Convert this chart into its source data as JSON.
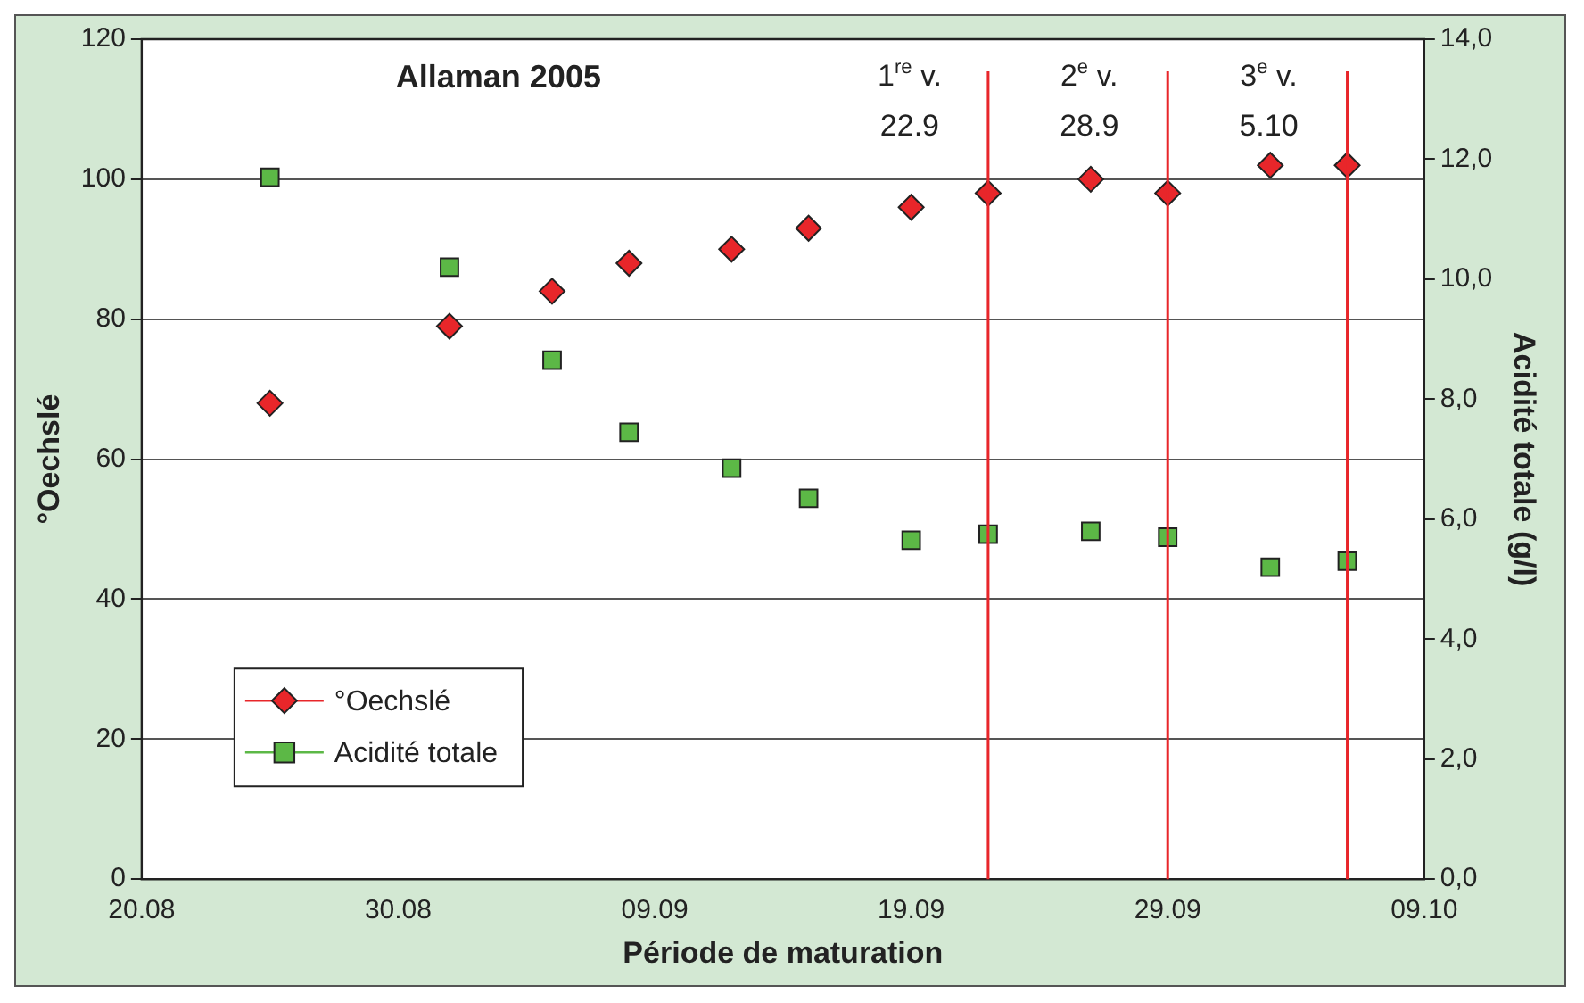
{
  "chart_data": {
    "type": "scatter",
    "title": "Allaman 2005",
    "xlabel": "Période de maturation",
    "ylabel": "°Oechslé",
    "y2label": "Acidité totale (g/l)",
    "x": [
      "2005-08-25",
      "2005-09-01",
      "2005-09-05",
      "2005-09-08",
      "2005-09-12",
      "2005-09-15",
      "2005-09-19",
      "2005-09-22",
      "2005-09-26",
      "2005-09-29",
      "2005-10-03",
      "2005-10-06"
    ],
    "series": [
      {
        "name": "°Oechslé",
        "color": "#e8262a",
        "marker": "diamond",
        "values": [
          68,
          79,
          84,
          88,
          90,
          93,
          96,
          98,
          100,
          98,
          102,
          102
        ]
      },
      {
        "name": "Acidité totale",
        "color": "#5cb846",
        "marker": "square",
        "axis": "y2",
        "values": [
          11.7,
          10.2,
          8.65,
          7.45,
          6.85,
          6.35,
          5.65,
          5.75,
          5.8,
          5.7,
          5.2,
          5.3
        ]
      }
    ],
    "xlim": [
      "2005-08-20",
      "2005-10-09"
    ],
    "xticks": [
      {
        "value": "2005-08-20",
        "label": "20.08"
      },
      {
        "value": "2005-08-30",
        "label": "30.08"
      },
      {
        "value": "2005-09-09",
        "label": "09.09"
      },
      {
        "value": "2005-09-19",
        "label": "19.09"
      },
      {
        "value": "2005-09-29",
        "label": "29.09"
      },
      {
        "value": "2005-10-09",
        "label": "09.10"
      }
    ],
    "ylim": [
      0,
      120
    ],
    "yticks": [
      0,
      20,
      40,
      60,
      80,
      100,
      120
    ],
    "y2lim": [
      0,
      14
    ],
    "y2ticks": [
      {
        "value": 0,
        "label": "0,0"
      },
      {
        "value": 2,
        "label": "2,0"
      },
      {
        "value": 4,
        "label": "4,0"
      },
      {
        "value": 6,
        "label": "6,0"
      },
      {
        "value": 8,
        "label": "8,0"
      },
      {
        "value": 10,
        "label": "10,0"
      },
      {
        "value": 12,
        "label": "12,0"
      },
      {
        "value": 14,
        "label": "14,0"
      }
    ],
    "ref_lines": [
      {
        "axis": "x",
        "value": "2005-09-22",
        "label": "1$^{re}$ v.\n22.9",
        "color": "#e8262a"
      },
      {
        "axis": "x",
        "value": "2005-09-29",
        "label": "2$^{e}$ v.\n28.9",
        "color": "#e8262a"
      },
      {
        "axis": "x",
        "value": "2005-10-06",
        "label": "3$^{e}$ v.\n5.10",
        "color": "#e8262a"
      }
    ],
    "grid": "y",
    "legend": "bottom left"
  }
}
